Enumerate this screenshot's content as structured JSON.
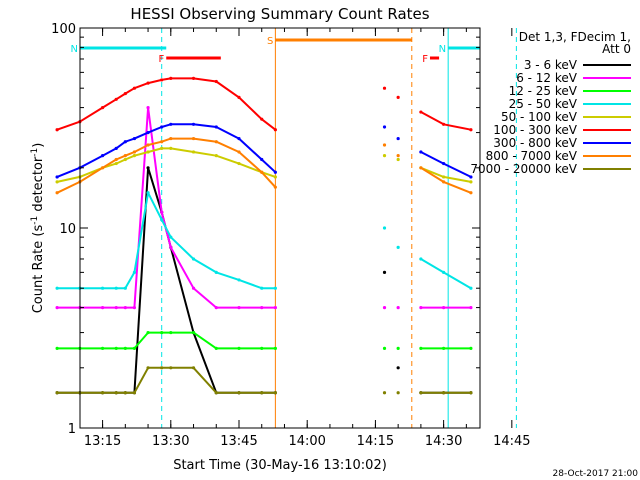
{
  "chart_data": {
    "type": "line",
    "title": "HESSI Observing Summary Count Rates",
    "xlabel": "Start Time (30-May-16 13:10:02)",
    "ylabel_main": "Count Rate (s",
    "ylabel_sup1": "-1",
    "ylabel_mid": " detector",
    "ylabel_sup2": "-1",
    "ylabel_end": ")",
    "yscale": "log",
    "ylim": [
      1,
      100
    ],
    "xlim": [
      "13:10:02",
      "14:48:00"
    ],
    "x_ticks": [
      "13:15",
      "13:30",
      "13:45",
      "14:00",
      "14:15",
      "14:30",
      "14:45"
    ],
    "y_ticks": [
      "1",
      "10",
      "100"
    ],
    "legend_header": [
      "Det 1,3, FDecim 1,",
      "Att 0"
    ],
    "legend_position": "right",
    "footer_date": "28-Oct-2017 21:00",
    "data_gaps": [
      [
        "13:53",
        "14:27"
      ]
    ],
    "flag_bars": [
      {
        "label": "N",
        "color": "#00e5e5",
        "start": "13:10",
        "end": "13:29"
      },
      {
        "label": "N",
        "color": "#00e5e5",
        "start": "14:31",
        "end": "14:48"
      },
      {
        "label": "F",
        "color": "#ff0000",
        "start": "13:29",
        "end": "13:41"
      },
      {
        "label": "F",
        "color": "#ff0000",
        "start": "14:27",
        "end": "14:29"
      },
      {
        "label": "S",
        "color": "#ff7f00",
        "start": "13:53",
        "end": "14:23"
      }
    ],
    "vertical_markers": [
      {
        "time": "13:28",
        "color": "#00e5e5",
        "style": "dashed"
      },
      {
        "time": "13:53",
        "color": "#ff7f00",
        "style": "solid"
      },
      {
        "time": "14:23",
        "color": "#ff7f00",
        "style": "dashed"
      },
      {
        "time": "14:31",
        "color": "#00e5e5",
        "style": "solid"
      },
      {
        "time": "14:46",
        "color": "#00e5e5",
        "style": "dashed"
      }
    ],
    "x_minutes": [
      5,
      10,
      15,
      18,
      20,
      22,
      25,
      28,
      30,
      35,
      40,
      45,
      50,
      53,
      77,
      80,
      85,
      90,
      96
    ],
    "series": [
      {
        "name": "3 - 6 keV",
        "color": "#000000",
        "values": [
          1.5,
          1.5,
          1.5,
          1.5,
          1.5,
          1.5,
          20,
          12,
          8,
          3,
          1.5,
          1.5,
          1.5,
          1.5,
          6,
          2,
          1.5,
          1.5,
          1.5
        ]
      },
      {
        "name": "6 - 12 keV",
        "color": "#ff00ff",
        "values": [
          4,
          4,
          4,
          4,
          4,
          4,
          40,
          12,
          8,
          5,
          4,
          4,
          4,
          4,
          4,
          4,
          4,
          4,
          4
        ]
      },
      {
        "name": "12 - 25 keV",
        "color": "#00ff00",
        "values": [
          2.5,
          2.5,
          2.5,
          2.5,
          2.5,
          2.5,
          3,
          3,
          3,
          3,
          2.5,
          2.5,
          2.5,
          2.5,
          2.5,
          2.5,
          2.5,
          2.5,
          2.5
        ]
      },
      {
        "name": "25 - 50 keV",
        "color": "#00e5e5",
        "values": [
          5,
          5,
          5,
          5,
          5,
          6,
          15,
          11,
          9,
          7,
          6,
          5.5,
          5,
          5,
          10,
          8,
          7,
          6,
          5
        ]
      },
      {
        "name": "50 - 100 keV",
        "color": "#cccc00",
        "values": [
          17,
          18,
          20,
          21,
          22,
          23,
          24,
          25,
          25,
          24,
          23,
          21,
          19,
          18,
          23,
          22,
          20,
          18,
          17
        ]
      },
      {
        "name": "100 - 300 keV",
        "color": "#ff0000",
        "values": [
          31,
          34,
          40,
          44,
          47,
          50,
          53,
          55,
          56,
          56,
          54,
          45,
          35,
          31,
          50,
          45,
          38,
          33,
          31
        ]
      },
      {
        "name": "300 - 800 keV",
        "color": "#0000ff",
        "values": [
          18,
          20,
          23,
          25,
          27,
          28,
          30,
          32,
          33,
          33,
          32,
          28,
          22,
          19,
          32,
          28,
          24,
          21,
          18
        ]
      },
      {
        "name": "800 - 7000 keV",
        "color": "#ff7f00",
        "values": [
          15,
          17,
          20,
          22,
          23,
          24,
          26,
          27,
          28,
          28,
          27,
          24,
          19,
          16,
          26,
          23,
          20,
          17,
          15
        ]
      },
      {
        "name": "7000 - 20000 keV",
        "color": "#808000",
        "values": [
          1.5,
          1.5,
          1.5,
          1.5,
          1.5,
          1.5,
          2,
          2,
          2,
          2,
          1.5,
          1.5,
          1.5,
          1.5,
          1.5,
          1.5,
          1.5,
          1.5,
          1.5
        ]
      }
    ]
  }
}
